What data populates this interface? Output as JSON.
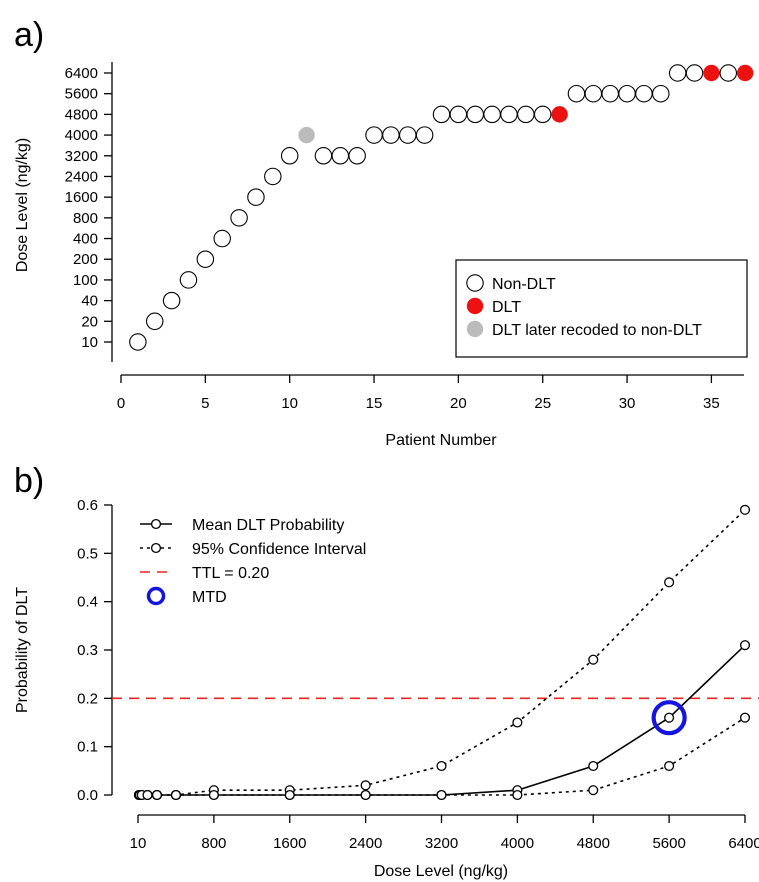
{
  "chart_data": [
    {
      "panel": "a)",
      "type": "scatter",
      "xlabel": "Patient Number",
      "ylabel": "Dose Level (ng/kg)",
      "xticks": [
        0,
        5,
        10,
        15,
        20,
        25,
        30,
        35
      ],
      "xlim": [
        0,
        38
      ],
      "yscale": "categorical-dose-levels",
      "ylevels": [
        "10",
        "20",
        "40",
        "100",
        "200",
        "400",
        "800",
        "1600",
        "2400",
        "3200",
        "4000",
        "4800",
        "5600",
        "6400"
      ],
      "grid": false,
      "legend": {
        "placement": "bottom-right",
        "entries": [
          {
            "label": "Non-DLT",
            "key": "non_dlt",
            "style": "open-circle",
            "color": "#ffffff"
          },
          {
            "label": "DLT",
            "key": "dlt",
            "style": "filled-circle",
            "color": "#ee1111"
          },
          {
            "label": "DLT later recoded to non-DLT",
            "key": "recoded",
            "style": "filled-circle",
            "color": "#bbbbbb"
          }
        ]
      },
      "points": [
        {
          "x": 1,
          "dose": "10",
          "status": "non_dlt"
        },
        {
          "x": 2,
          "dose": "20",
          "status": "non_dlt"
        },
        {
          "x": 3,
          "dose": "40",
          "status": "non_dlt"
        },
        {
          "x": 4,
          "dose": "100",
          "status": "non_dlt"
        },
        {
          "x": 5,
          "dose": "200",
          "status": "non_dlt"
        },
        {
          "x": 6,
          "dose": "400",
          "status": "non_dlt"
        },
        {
          "x": 7,
          "dose": "800",
          "status": "non_dlt"
        },
        {
          "x": 8,
          "dose": "1600",
          "status": "non_dlt"
        },
        {
          "x": 9,
          "dose": "2400",
          "status": "non_dlt"
        },
        {
          "x": 10,
          "dose": "3200",
          "status": "non_dlt"
        },
        {
          "x": 11,
          "dose": "4000",
          "status": "recoded"
        },
        {
          "x": 12,
          "dose": "3200",
          "status": "non_dlt"
        },
        {
          "x": 13,
          "dose": "3200",
          "status": "non_dlt"
        },
        {
          "x": 14,
          "dose": "3200",
          "status": "non_dlt"
        },
        {
          "x": 15,
          "dose": "4000",
          "status": "non_dlt"
        },
        {
          "x": 16,
          "dose": "4000",
          "status": "non_dlt"
        },
        {
          "x": 17,
          "dose": "4000",
          "status": "non_dlt"
        },
        {
          "x": 18,
          "dose": "4000",
          "status": "non_dlt"
        },
        {
          "x": 19,
          "dose": "4800",
          "status": "non_dlt"
        },
        {
          "x": 20,
          "dose": "4800",
          "status": "non_dlt"
        },
        {
          "x": 21,
          "dose": "4800",
          "status": "non_dlt"
        },
        {
          "x": 22,
          "dose": "4800",
          "status": "non_dlt"
        },
        {
          "x": 23,
          "dose": "4800",
          "status": "non_dlt"
        },
        {
          "x": 24,
          "dose": "4800",
          "status": "non_dlt"
        },
        {
          "x": 25,
          "dose": "4800",
          "status": "non_dlt"
        },
        {
          "x": 26,
          "dose": "4800",
          "status": "dlt"
        },
        {
          "x": 27,
          "dose": "5600",
          "status": "non_dlt"
        },
        {
          "x": 28,
          "dose": "5600",
          "status": "non_dlt"
        },
        {
          "x": 29,
          "dose": "5600",
          "status": "non_dlt"
        },
        {
          "x": 30,
          "dose": "5600",
          "status": "non_dlt"
        },
        {
          "x": 31,
          "dose": "5600",
          "status": "non_dlt"
        },
        {
          "x": 32,
          "dose": "5600",
          "status": "non_dlt"
        },
        {
          "x": 33,
          "dose": "6400",
          "status": "non_dlt"
        },
        {
          "x": 34,
          "dose": "6400",
          "status": "non_dlt"
        },
        {
          "x": 35,
          "dose": "6400",
          "status": "dlt"
        },
        {
          "x": 36,
          "dose": "6400",
          "status": "non_dlt"
        },
        {
          "x": 37,
          "dose": "6400",
          "status": "dlt"
        }
      ]
    },
    {
      "panel": "b)",
      "type": "line",
      "xlabel": "Dose Level (ng/kg)",
      "ylabel": "Probability of DLT",
      "xticks": [
        "10",
        "800",
        "1600",
        "2400",
        "3200",
        "4000",
        "4800",
        "5600",
        "6400"
      ],
      "xlim": [
        0,
        6400
      ],
      "ylim": [
        0,
        0.6
      ],
      "yticks": [
        "0.0",
        "0.1",
        "0.2",
        "0.3",
        "0.4",
        "0.5",
        "0.6"
      ],
      "grid": false,
      "x": [
        10,
        20,
        40,
        100,
        200,
        400,
        800,
        1600,
        2400,
        3200,
        4000,
        4800,
        5600,
        6400
      ],
      "series": [
        {
          "name": "Mean DLT Probability",
          "style": "solid",
          "color": "#000000",
          "values": [
            0,
            0,
            0,
            0,
            0,
            0,
            0,
            0,
            0,
            0,
            0.01,
            0.06,
            0.16,
            0.31
          ]
        },
        {
          "name": "95% Confidence Interval",
          "role": "upper",
          "style": "dotted",
          "color": "#000000",
          "values": [
            0,
            0,
            0,
            0,
            0,
            0,
            0.01,
            0.01,
            0.02,
            0.06,
            0.15,
            0.28,
            0.44,
            0.59
          ]
        },
        {
          "name": "95% Confidence Interval",
          "role": "lower",
          "style": "dotted",
          "color": "#000000",
          "values": [
            0,
            0,
            0,
            0,
            0,
            0,
            0,
            0,
            0,
            0,
            0,
            0.01,
            0.06,
            0.16
          ]
        }
      ],
      "ttl": {
        "label": "TTL = 0.20",
        "value": 0.2,
        "color": "#ee2222"
      },
      "mtd": {
        "label": "MTD",
        "x": 5600,
        "y": 0.16,
        "color": "#1414e0"
      },
      "legend": {
        "placement": "top-left",
        "entries": [
          {
            "label": "Mean DLT Probability",
            "key": "mean"
          },
          {
            "label": "95% Confidence Interval",
            "key": "ci"
          },
          {
            "label": "TTL = 0.20",
            "key": "ttl"
          },
          {
            "label": "MTD",
            "key": "mtd"
          }
        ]
      }
    }
  ]
}
